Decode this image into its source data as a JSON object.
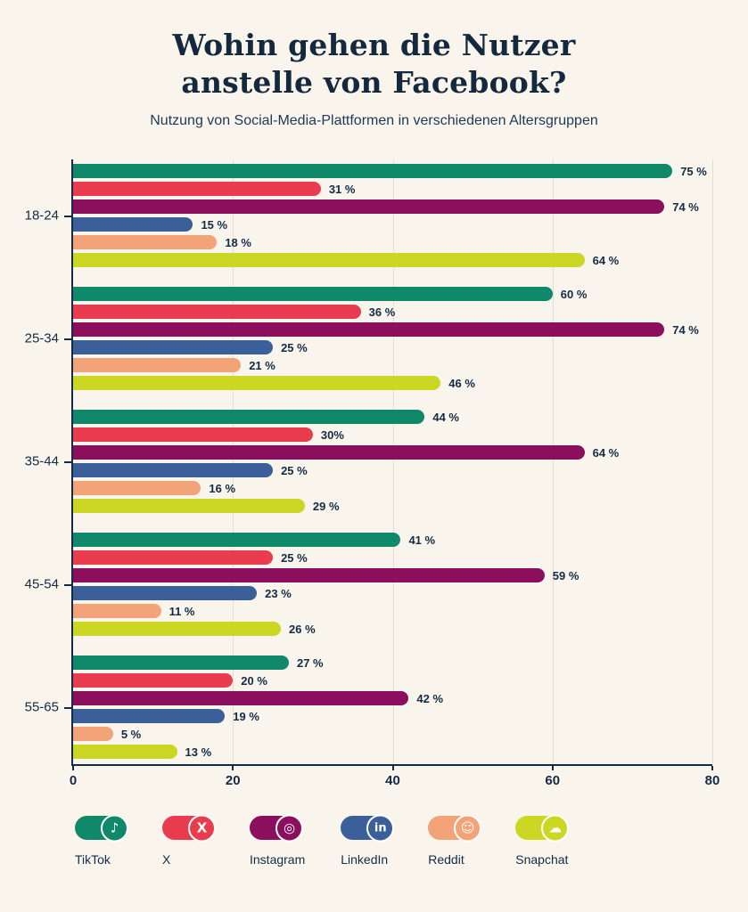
{
  "header": {
    "title_line1": "Wohin gehen die Nutzer",
    "title_line2": "anstelle von Facebook?",
    "subtitle": "Nutzung von Social-Media-Plattformen in verschiedenen Altersgruppen"
  },
  "colors": {
    "background": "#f9f5ec",
    "text": "#132b45",
    "grid": "#e3ded2",
    "axis": "#132b45"
  },
  "chart_data": {
    "type": "bar",
    "orientation": "horizontal",
    "title": "Wohin gehen die Nutzer anstelle von Facebook?",
    "subtitle": "Nutzung von Social-Media-Plattformen in verschiedenen Altersgruppen",
    "categories": [
      "18-24",
      "25-34",
      "35-44",
      "45-54",
      "55-65"
    ],
    "series": [
      {
        "name": "TikTok",
        "color": "#10886a",
        "values": [
          75,
          60,
          44,
          41,
          27
        ],
        "labels": [
          "75 %",
          "60 %",
          "44 %",
          "41 %",
          "27 %"
        ]
      },
      {
        "name": "X",
        "color": "#e93c4f",
        "values": [
          31,
          36,
          30,
          25,
          20
        ],
        "labels": [
          "31 %",
          "36 %",
          "30%",
          "25 %",
          "20 %"
        ]
      },
      {
        "name": "Instagram",
        "color": "#8c0f5e",
        "values": [
          74,
          74,
          64,
          59,
          42
        ],
        "labels": [
          "74 %",
          "74 %",
          "64 %",
          "59 %",
          "42 %"
        ]
      },
      {
        "name": "LinkedIn",
        "color": "#3b5f98",
        "values": [
          15,
          25,
          25,
          23,
          19
        ],
        "labels": [
          "15 %",
          "25 %",
          "25 %",
          "23 %",
          "19 %"
        ]
      },
      {
        "name": "Reddit",
        "color": "#f2a378",
        "values": [
          18,
          21,
          16,
          11,
          5
        ],
        "labels": [
          "18 %",
          "21 %",
          "16 %",
          "11 %",
          "5 %"
        ]
      },
      {
        "name": "Snapchat",
        "color": "#ccd724",
        "values": [
          64,
          46,
          29,
          26,
          13
        ],
        "labels": [
          "64 %",
          "46 %",
          "29 %",
          "26 %",
          "13 %"
        ]
      }
    ],
    "xlim": [
      0,
      80
    ],
    "x_ticks": [
      "0",
      "20",
      "40",
      "60",
      "80"
    ],
    "grid": true,
    "legend_position": "bottom"
  },
  "legend": {
    "items": [
      {
        "label": "TikTok",
        "color": "#10886a",
        "icon": "tiktok-icon",
        "glyph": "♪"
      },
      {
        "label": "X",
        "color": "#e93c4f",
        "icon": "x-icon",
        "glyph": "X"
      },
      {
        "label": "Instagram",
        "color": "#8c0f5e",
        "icon": "instagram-icon",
        "glyph": "◎"
      },
      {
        "label": "LinkedIn",
        "color": "#3b5f98",
        "icon": "linkedin-icon",
        "glyph": "in"
      },
      {
        "label": "Reddit",
        "color": "#f2a378",
        "icon": "reddit-icon",
        "glyph": "☺"
      },
      {
        "label": "Snapchat",
        "color": "#ccd724",
        "icon": "snapchat-icon",
        "glyph": "☁"
      }
    ]
  }
}
